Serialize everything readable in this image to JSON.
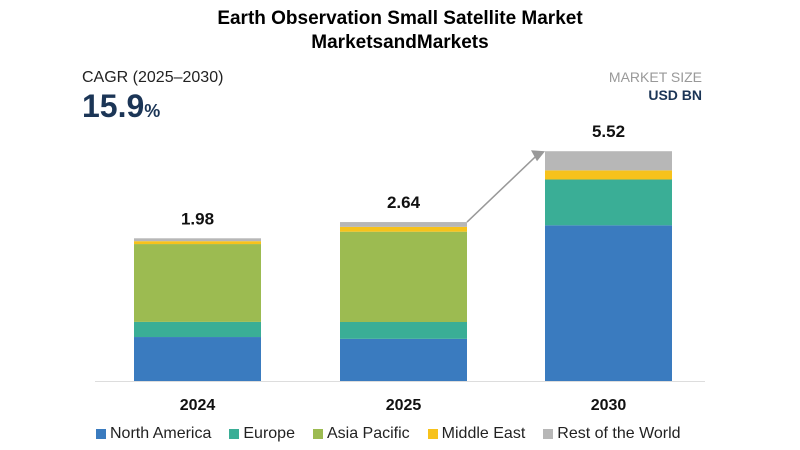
{
  "chart_data": {
    "type": "bar",
    "stacked": true,
    "title": "Earth Observation Small Satellite Market",
    "subtitle": "MarketsandMarkets",
    "xlabel": "",
    "ylabel": "",
    "categories": [
      "2024",
      "2025",
      "2030"
    ],
    "totals": [
      "1.98",
      "2.64",
      "5.52"
    ],
    "series": [
      {
        "name": "North America",
        "color": "#3a7bbf",
        "values": [
          0.61,
          0.7,
          3.74
        ]
      },
      {
        "name": "Europe",
        "color": "#3aae96",
        "values": [
          0.21,
          0.28,
          1.1
        ]
      },
      {
        "name": "Asia Pacific",
        "color": "#9cbb51",
        "values": [
          1.08,
          1.5,
          0.0
        ]
      },
      {
        "name": "Middle East",
        "color": "#f7c21b",
        "values": [
          0.04,
          0.08,
          0.22
        ]
      },
      {
        "name": "Rest of the World",
        "color": "#b7b7b7",
        "values": [
          0.04,
          0.08,
          0.46
        ]
      }
    ],
    "legend_position": "bottom",
    "grid": false
  },
  "cagr": {
    "label": "CAGR (2025–2030)",
    "value": "15.9",
    "unit": "%"
  },
  "market_size": {
    "label": "MARKET SIZE",
    "unit": "USD BN"
  }
}
